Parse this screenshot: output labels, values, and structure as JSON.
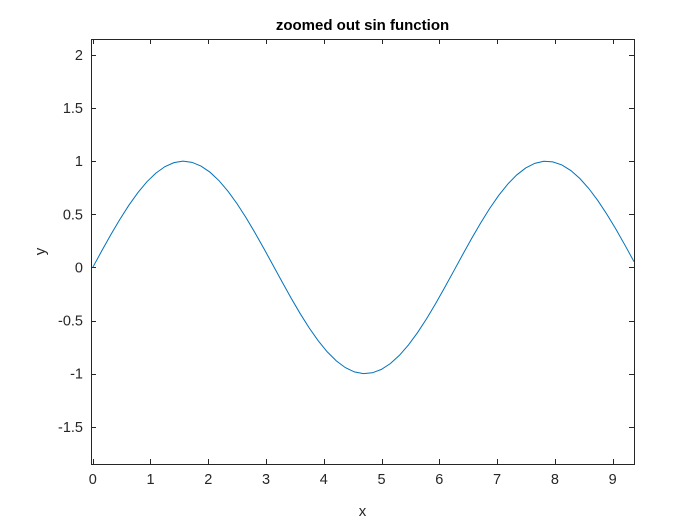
{
  "chart_data": {
    "type": "line",
    "title": "zoomed out sin function",
    "xlabel": "x",
    "ylabel": "y",
    "xlim": [
      -0.03,
      9.37
    ],
    "ylim": [
      -1.85,
      2.15
    ],
    "x_ticks": [
      0,
      1,
      2,
      3,
      4,
      5,
      6,
      7,
      8,
      9
    ],
    "x_tick_labels": [
      "0",
      "1",
      "2",
      "3",
      "4",
      "5",
      "6",
      "7",
      "8",
      "9"
    ],
    "y_ticks": [
      -1.5,
      -1,
      -0.5,
      0,
      0.5,
      1,
      1.5,
      2
    ],
    "y_tick_labels": [
      "-1.5",
      "-1",
      "-0.5",
      "0",
      "0.5",
      "1",
      "1.5",
      "2"
    ],
    "grid": false,
    "box": true,
    "series": [
      {
        "function": "sin",
        "x_start": 0,
        "x_end": 9.37,
        "samples": 60,
        "color": "#0072BD"
      }
    ]
  }
}
